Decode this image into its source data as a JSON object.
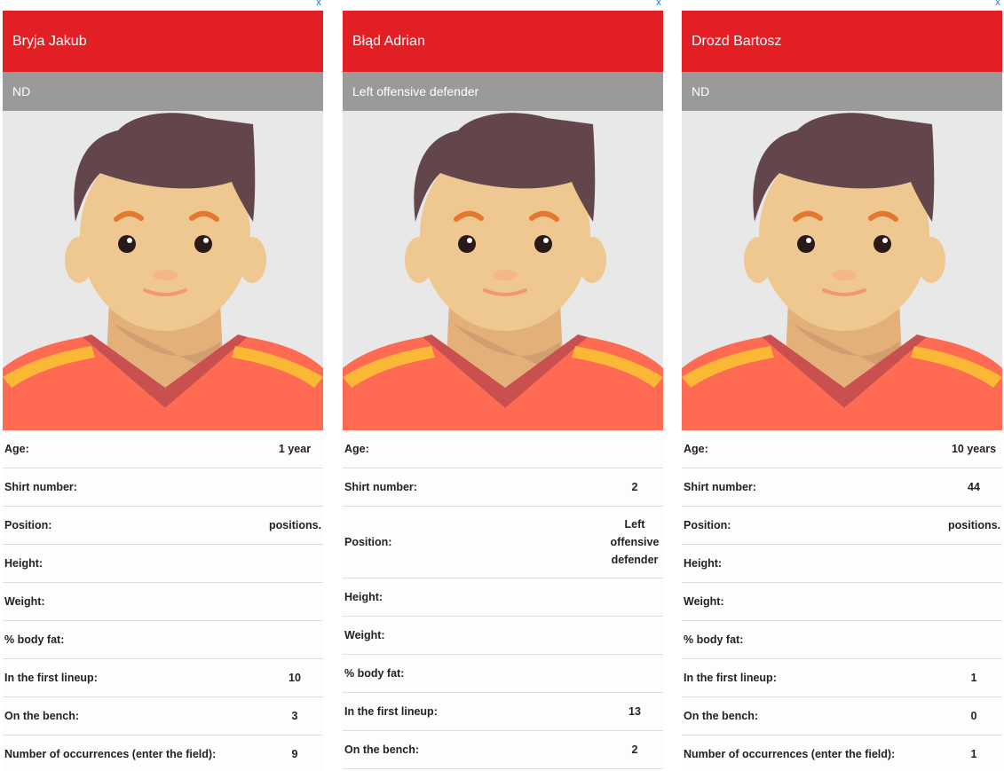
{
  "close_label": "x",
  "colors": {
    "header": "#e21f24",
    "subheader": "#9a9a9a",
    "close": "#2a7ae2"
  },
  "avatar_icon": "player-avatar",
  "players": [
    {
      "name": "Bryja Jakub",
      "subtitle": "ND",
      "stats": [
        {
          "label": "Age:",
          "value": "1 year"
        },
        {
          "label": "Shirt number:",
          "value": ""
        },
        {
          "label": "Position:",
          "value": "positions."
        },
        {
          "label": "Height:",
          "value": ""
        },
        {
          "label": "Weight:",
          "value": ""
        },
        {
          "label": "% body fat:",
          "value": ""
        },
        {
          "label": "In the first lineup:",
          "value": "10"
        },
        {
          "label": "On the bench:",
          "value": "3"
        },
        {
          "label": "Number of occurrences (enter the field):",
          "value": "9"
        }
      ]
    },
    {
      "name": "Błąd Adrian",
      "subtitle": "Left offensive defender",
      "stats": [
        {
          "label": "Age:",
          "value": ""
        },
        {
          "label": "Shirt number:",
          "value": "2"
        },
        {
          "label": "Position:",
          "value": "Left offensive defender"
        },
        {
          "label": "Height:",
          "value": ""
        },
        {
          "label": "Weight:",
          "value": ""
        },
        {
          "label": "% body fat:",
          "value": ""
        },
        {
          "label": "In the first lineup:",
          "value": "13"
        },
        {
          "label": "On the bench:",
          "value": "2"
        }
      ]
    },
    {
      "name": "Drozd Bartosz",
      "subtitle": "ND",
      "stats": [
        {
          "label": "Age:",
          "value": "10 years"
        },
        {
          "label": "Shirt number:",
          "value": "44"
        },
        {
          "label": "Position:",
          "value": "positions."
        },
        {
          "label": "Height:",
          "value": ""
        },
        {
          "label": "Weight:",
          "value": ""
        },
        {
          "label": "% body fat:",
          "value": ""
        },
        {
          "label": "In the first lineup:",
          "value": "1"
        },
        {
          "label": "On the bench:",
          "value": "0"
        },
        {
          "label": "Number of occurrences (enter the field):",
          "value": "1"
        }
      ]
    }
  ]
}
